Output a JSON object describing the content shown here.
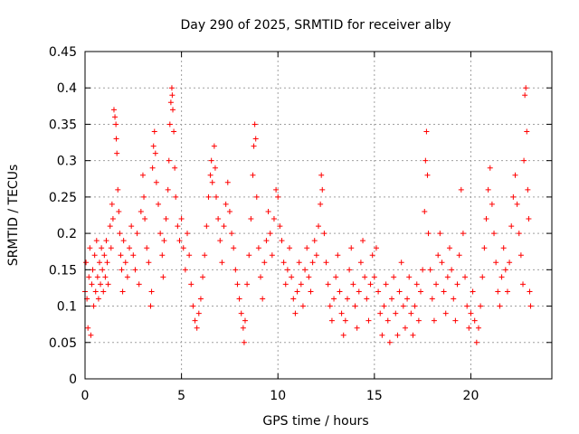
{
  "chart_data": {
    "type": "scatter",
    "title": "Day 290 of 2025, SRMTID for receiver alby",
    "xlabel": "GPS time / hours",
    "ylabel": "SRMTID / TECUs",
    "xlim": [
      0,
      24.2
    ],
    "ylim": [
      0,
      0.45
    ],
    "xticks": [
      0,
      5,
      10,
      15,
      20
    ],
    "xtick_labels": [
      "0",
      "5",
      "10",
      "15",
      "20"
    ],
    "yticks": [
      0,
      0.05,
      0.1,
      0.15,
      0.2,
      0.25,
      0.3,
      0.35,
      0.4,
      0.45
    ],
    "ytick_labels": [
      "0",
      "0.05",
      "0.1",
      "0.15",
      "0.2",
      "0.25",
      "0.3",
      "0.35",
      "0.4",
      "0.45"
    ],
    "grid": true,
    "marker": "plus",
    "color": "#ff0000",
    "series": [
      {
        "points": [
          [
            0.0,
            0.12
          ],
          [
            0.05,
            0.16
          ],
          [
            0.1,
            0.11
          ],
          [
            0.15,
            0.07
          ],
          [
            0.2,
            0.14
          ],
          [
            0.25,
            0.18
          ],
          [
            0.3,
            0.06
          ],
          [
            0.35,
            0.13
          ],
          [
            0.4,
            0.15
          ],
          [
            0.45,
            0.1
          ],
          [
            0.5,
            0.17
          ],
          [
            0.55,
            0.12
          ],
          [
            0.6,
            0.19
          ],
          [
            0.65,
            0.14
          ],
          [
            0.7,
            0.11
          ],
          [
            0.75,
            0.16
          ],
          [
            0.8,
            0.13
          ],
          [
            0.85,
            0.18
          ],
          [
            0.9,
            0.15
          ],
          [
            0.95,
            0.12
          ],
          [
            1.0,
            0.17
          ],
          [
            1.05,
            0.14
          ],
          [
            1.1,
            0.19
          ],
          [
            1.15,
            0.16
          ],
          [
            1.2,
            0.13
          ],
          [
            1.3,
            0.21
          ],
          [
            1.35,
            0.18
          ],
          [
            1.4,
            0.24
          ],
          [
            1.45,
            0.22
          ],
          [
            1.5,
            0.37
          ],
          [
            1.55,
            0.36
          ],
          [
            1.6,
            0.35
          ],
          [
            1.62,
            0.33
          ],
          [
            1.65,
            0.31
          ],
          [
            1.7,
            0.26
          ],
          [
            1.75,
            0.23
          ],
          [
            1.8,
            0.2
          ],
          [
            1.85,
            0.17
          ],
          [
            1.9,
            0.15
          ],
          [
            1.95,
            0.12
          ],
          [
            2.0,
            0.19
          ],
          [
            2.1,
            0.16
          ],
          [
            2.2,
            0.14
          ],
          [
            2.3,
            0.18
          ],
          [
            2.4,
            0.21
          ],
          [
            2.5,
            0.17
          ],
          [
            2.6,
            0.15
          ],
          [
            2.7,
            0.2
          ],
          [
            2.8,
            0.13
          ],
          [
            2.9,
            0.23
          ],
          [
            3.0,
            0.28
          ],
          [
            3.05,
            0.25
          ],
          [
            3.1,
            0.22
          ],
          [
            3.2,
            0.18
          ],
          [
            3.3,
            0.16
          ],
          [
            3.4,
            0.1
          ],
          [
            3.45,
            0.12
          ],
          [
            3.5,
            0.29
          ],
          [
            3.55,
            0.32
          ],
          [
            3.6,
            0.34
          ],
          [
            3.65,
            0.31
          ],
          [
            3.7,
            0.27
          ],
          [
            3.8,
            0.24
          ],
          [
            3.9,
            0.2
          ],
          [
            4.0,
            0.17
          ],
          [
            4.05,
            0.14
          ],
          [
            4.1,
            0.19
          ],
          [
            4.2,
            0.22
          ],
          [
            4.3,
            0.26
          ],
          [
            4.35,
            0.3
          ],
          [
            4.4,
            0.35
          ],
          [
            4.45,
            0.38
          ],
          [
            4.5,
            0.4
          ],
          [
            4.52,
            0.39
          ],
          [
            4.55,
            0.37
          ],
          [
            4.6,
            0.34
          ],
          [
            4.65,
            0.29
          ],
          [
            4.7,
            0.25
          ],
          [
            4.8,
            0.21
          ],
          [
            4.9,
            0.19
          ],
          [
            5.0,
            0.22
          ],
          [
            5.1,
            0.18
          ],
          [
            5.2,
            0.15
          ],
          [
            5.3,
            0.2
          ],
          [
            5.4,
            0.17
          ],
          [
            5.5,
            0.13
          ],
          [
            5.6,
            0.1
          ],
          [
            5.7,
            0.08
          ],
          [
            5.8,
            0.07
          ],
          [
            5.9,
            0.09
          ],
          [
            6.0,
            0.11
          ],
          [
            6.1,
            0.14
          ],
          [
            6.2,
            0.17
          ],
          [
            6.3,
            0.21
          ],
          [
            6.4,
            0.25
          ],
          [
            6.5,
            0.28
          ],
          [
            6.55,
            0.3
          ],
          [
            6.6,
            0.27
          ],
          [
            6.7,
            0.32
          ],
          [
            6.75,
            0.29
          ],
          [
            6.8,
            0.25
          ],
          [
            6.9,
            0.22
          ],
          [
            7.0,
            0.19
          ],
          [
            7.1,
            0.16
          ],
          [
            7.2,
            0.21
          ],
          [
            7.3,
            0.24
          ],
          [
            7.4,
            0.27
          ],
          [
            7.5,
            0.23
          ],
          [
            7.6,
            0.2
          ],
          [
            7.7,
            0.18
          ],
          [
            7.8,
            0.15
          ],
          [
            7.9,
            0.13
          ],
          [
            8.0,
            0.11
          ],
          [
            8.1,
            0.09
          ],
          [
            8.2,
            0.07
          ],
          [
            8.25,
            0.05
          ],
          [
            8.3,
            0.08
          ],
          [
            8.4,
            0.13
          ],
          [
            8.5,
            0.17
          ],
          [
            8.6,
            0.22
          ],
          [
            8.7,
            0.28
          ],
          [
            8.75,
            0.32
          ],
          [
            8.8,
            0.35
          ],
          [
            8.85,
            0.33
          ],
          [
            8.9,
            0.25
          ],
          [
            9.0,
            0.18
          ],
          [
            9.1,
            0.14
          ],
          [
            9.2,
            0.11
          ],
          [
            9.3,
            0.16
          ],
          [
            9.4,
            0.19
          ],
          [
            9.5,
            0.23
          ],
          [
            9.6,
            0.2
          ],
          [
            9.7,
            0.17
          ],
          [
            9.8,
            0.22
          ],
          [
            9.9,
            0.26
          ],
          [
            10.0,
            0.25
          ],
          [
            10.1,
            0.21
          ],
          [
            10.2,
            0.19
          ],
          [
            10.3,
            0.16
          ],
          [
            10.4,
            0.13
          ],
          [
            10.5,
            0.15
          ],
          [
            10.6,
            0.18
          ],
          [
            10.7,
            0.14
          ],
          [
            10.8,
            0.11
          ],
          [
            10.9,
            0.09
          ],
          [
            11.0,
            0.12
          ],
          [
            11.1,
            0.16
          ],
          [
            11.2,
            0.13
          ],
          [
            11.3,
            0.1
          ],
          [
            11.4,
            0.15
          ],
          [
            11.5,
            0.18
          ],
          [
            11.6,
            0.14
          ],
          [
            11.7,
            0.12
          ],
          [
            11.8,
            0.16
          ],
          [
            11.9,
            0.19
          ],
          [
            12.0,
            0.17
          ],
          [
            12.1,
            0.21
          ],
          [
            12.2,
            0.24
          ],
          [
            12.25,
            0.28
          ],
          [
            12.3,
            0.26
          ],
          [
            12.4,
            0.2
          ],
          [
            12.5,
            0.16
          ],
          [
            12.6,
            0.13
          ],
          [
            12.7,
            0.1
          ],
          [
            12.8,
            0.08
          ],
          [
            12.9,
            0.11
          ],
          [
            13.0,
            0.14
          ],
          [
            13.1,
            0.17
          ],
          [
            13.2,
            0.12
          ],
          [
            13.3,
            0.09
          ],
          [
            13.4,
            0.06
          ],
          [
            13.5,
            0.08
          ],
          [
            13.6,
            0.11
          ],
          [
            13.7,
            0.15
          ],
          [
            13.8,
            0.18
          ],
          [
            13.9,
            0.13
          ],
          [
            14.0,
            0.1
          ],
          [
            14.1,
            0.07
          ],
          [
            14.2,
            0.12
          ],
          [
            14.3,
            0.16
          ],
          [
            14.4,
            0.19
          ],
          [
            14.5,
            0.14
          ],
          [
            14.6,
            0.11
          ],
          [
            14.7,
            0.08
          ],
          [
            14.8,
            0.13
          ],
          [
            14.9,
            0.17
          ],
          [
            15.0,
            0.14
          ],
          [
            15.1,
            0.18
          ],
          [
            15.2,
            0.12
          ],
          [
            15.3,
            0.09
          ],
          [
            15.4,
            0.06
          ],
          [
            15.5,
            0.1
          ],
          [
            15.6,
            0.13
          ],
          [
            15.7,
            0.08
          ],
          [
            15.8,
            0.05
          ],
          [
            15.9,
            0.11
          ],
          [
            16.0,
            0.14
          ],
          [
            16.1,
            0.09
          ],
          [
            16.2,
            0.06
          ],
          [
            16.3,
            0.12
          ],
          [
            16.4,
            0.16
          ],
          [
            16.5,
            0.1
          ],
          [
            16.6,
            0.07
          ],
          [
            16.7,
            0.11
          ],
          [
            16.8,
            0.14
          ],
          [
            16.9,
            0.09
          ],
          [
            17.0,
            0.06
          ],
          [
            17.1,
            0.1
          ],
          [
            17.2,
            0.13
          ],
          [
            17.3,
            0.08
          ],
          [
            17.4,
            0.12
          ],
          [
            17.5,
            0.15
          ],
          [
            17.6,
            0.23
          ],
          [
            17.65,
            0.3
          ],
          [
            17.7,
            0.34
          ],
          [
            17.75,
            0.28
          ],
          [
            17.8,
            0.2
          ],
          [
            17.9,
            0.15
          ],
          [
            18.0,
            0.11
          ],
          [
            18.1,
            0.08
          ],
          [
            18.2,
            0.13
          ],
          [
            18.3,
            0.17
          ],
          [
            18.4,
            0.2
          ],
          [
            18.5,
            0.16
          ],
          [
            18.6,
            0.12
          ],
          [
            18.7,
            0.09
          ],
          [
            18.8,
            0.14
          ],
          [
            18.9,
            0.18
          ],
          [
            19.0,
            0.15
          ],
          [
            19.1,
            0.11
          ],
          [
            19.2,
            0.08
          ],
          [
            19.3,
            0.13
          ],
          [
            19.4,
            0.17
          ],
          [
            19.5,
            0.26
          ],
          [
            19.6,
            0.2
          ],
          [
            19.7,
            0.14
          ],
          [
            19.8,
            0.1
          ],
          [
            19.9,
            0.07
          ],
          [
            20.0,
            0.09
          ],
          [
            20.1,
            0.12
          ],
          [
            20.2,
            0.08
          ],
          [
            20.3,
            0.05
          ],
          [
            20.4,
            0.07
          ],
          [
            20.5,
            0.1
          ],
          [
            20.6,
            0.14
          ],
          [
            20.7,
            0.18
          ],
          [
            20.8,
            0.22
          ],
          [
            20.9,
            0.26
          ],
          [
            21.0,
            0.29
          ],
          [
            21.1,
            0.24
          ],
          [
            21.2,
            0.2
          ],
          [
            21.3,
            0.16
          ],
          [
            21.4,
            0.12
          ],
          [
            21.5,
            0.1
          ],
          [
            21.6,
            0.14
          ],
          [
            21.7,
            0.18
          ],
          [
            21.8,
            0.15
          ],
          [
            21.9,
            0.12
          ],
          [
            22.0,
            0.16
          ],
          [
            22.1,
            0.21
          ],
          [
            22.2,
            0.25
          ],
          [
            22.3,
            0.28
          ],
          [
            22.4,
            0.24
          ],
          [
            22.5,
            0.2
          ],
          [
            22.6,
            0.17
          ],
          [
            22.7,
            0.13
          ],
          [
            22.75,
            0.3
          ],
          [
            22.8,
            0.39
          ],
          [
            22.85,
            0.4
          ],
          [
            22.9,
            0.34
          ],
          [
            22.95,
            0.26
          ],
          [
            23.0,
            0.22
          ],
          [
            23.05,
            0.12
          ],
          [
            23.1,
            0.1
          ]
        ]
      }
    ]
  }
}
